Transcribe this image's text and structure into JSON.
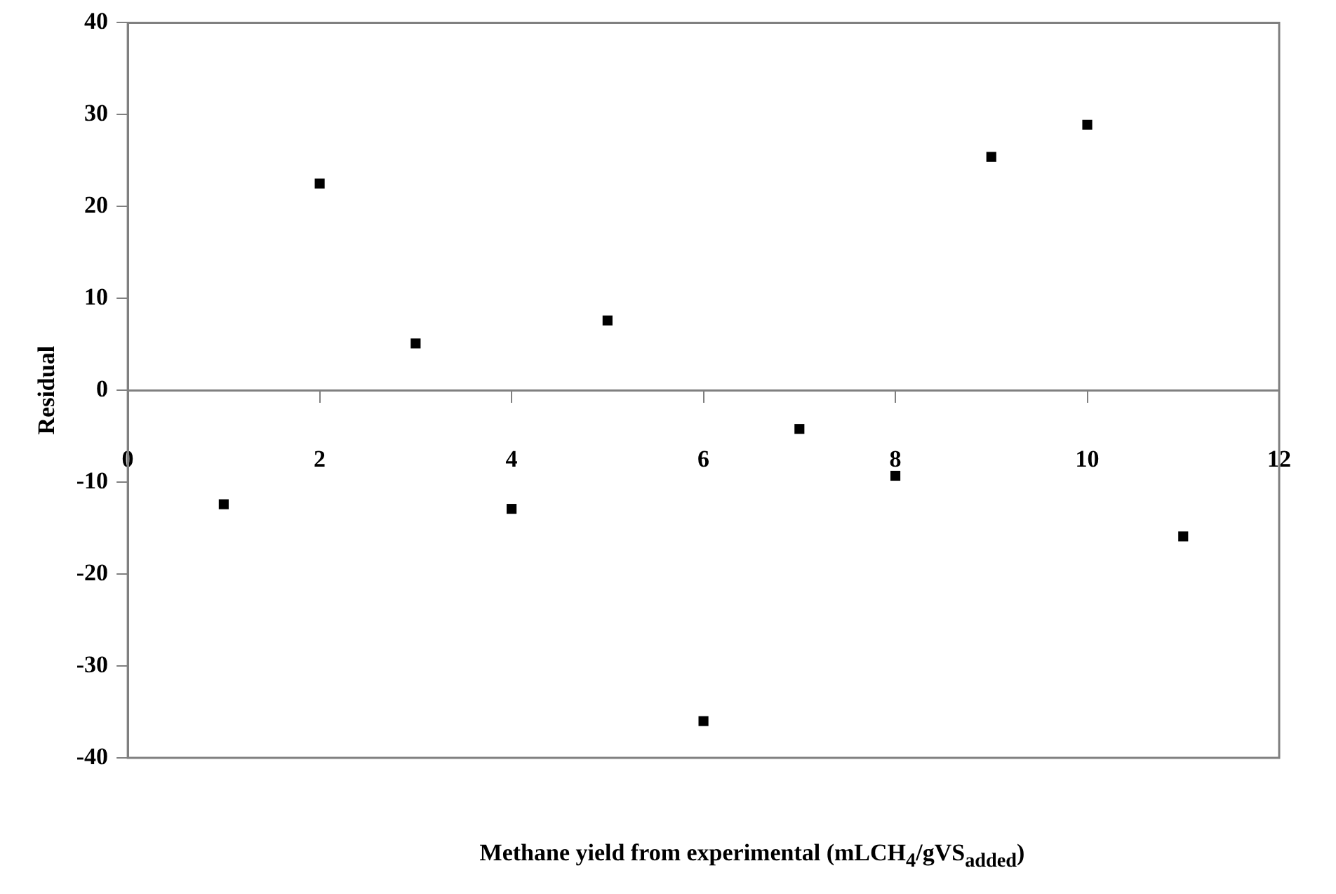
{
  "chart_data": {
    "type": "scatter",
    "xlabel": "Methane yield from experimental (mLCH$_{4}$/gVS$_{added}$)",
    "ylabel": "Residual",
    "x": [
      1,
      2,
      3,
      4,
      5,
      6,
      7,
      8,
      9,
      10,
      11
    ],
    "series": [
      {
        "color": "#000000",
        "values": [
          -12.4,
          22.5,
          5.1,
          -12.9,
          7.6,
          -36.0,
          -4.2,
          -9.3,
          25.4,
          28.9,
          -15.9
        ]
      }
    ],
    "xlim": [
      0,
      12
    ],
    "xticks": [
      0,
      2,
      4,
      6,
      8,
      10,
      12
    ],
    "ylim": [
      -40,
      40
    ],
    "yticks": [
      -40,
      -30,
      -20,
      -10,
      0,
      10,
      20,
      30,
      40
    ],
    "grid": false,
    "legend": false,
    "marker": "square"
  }
}
